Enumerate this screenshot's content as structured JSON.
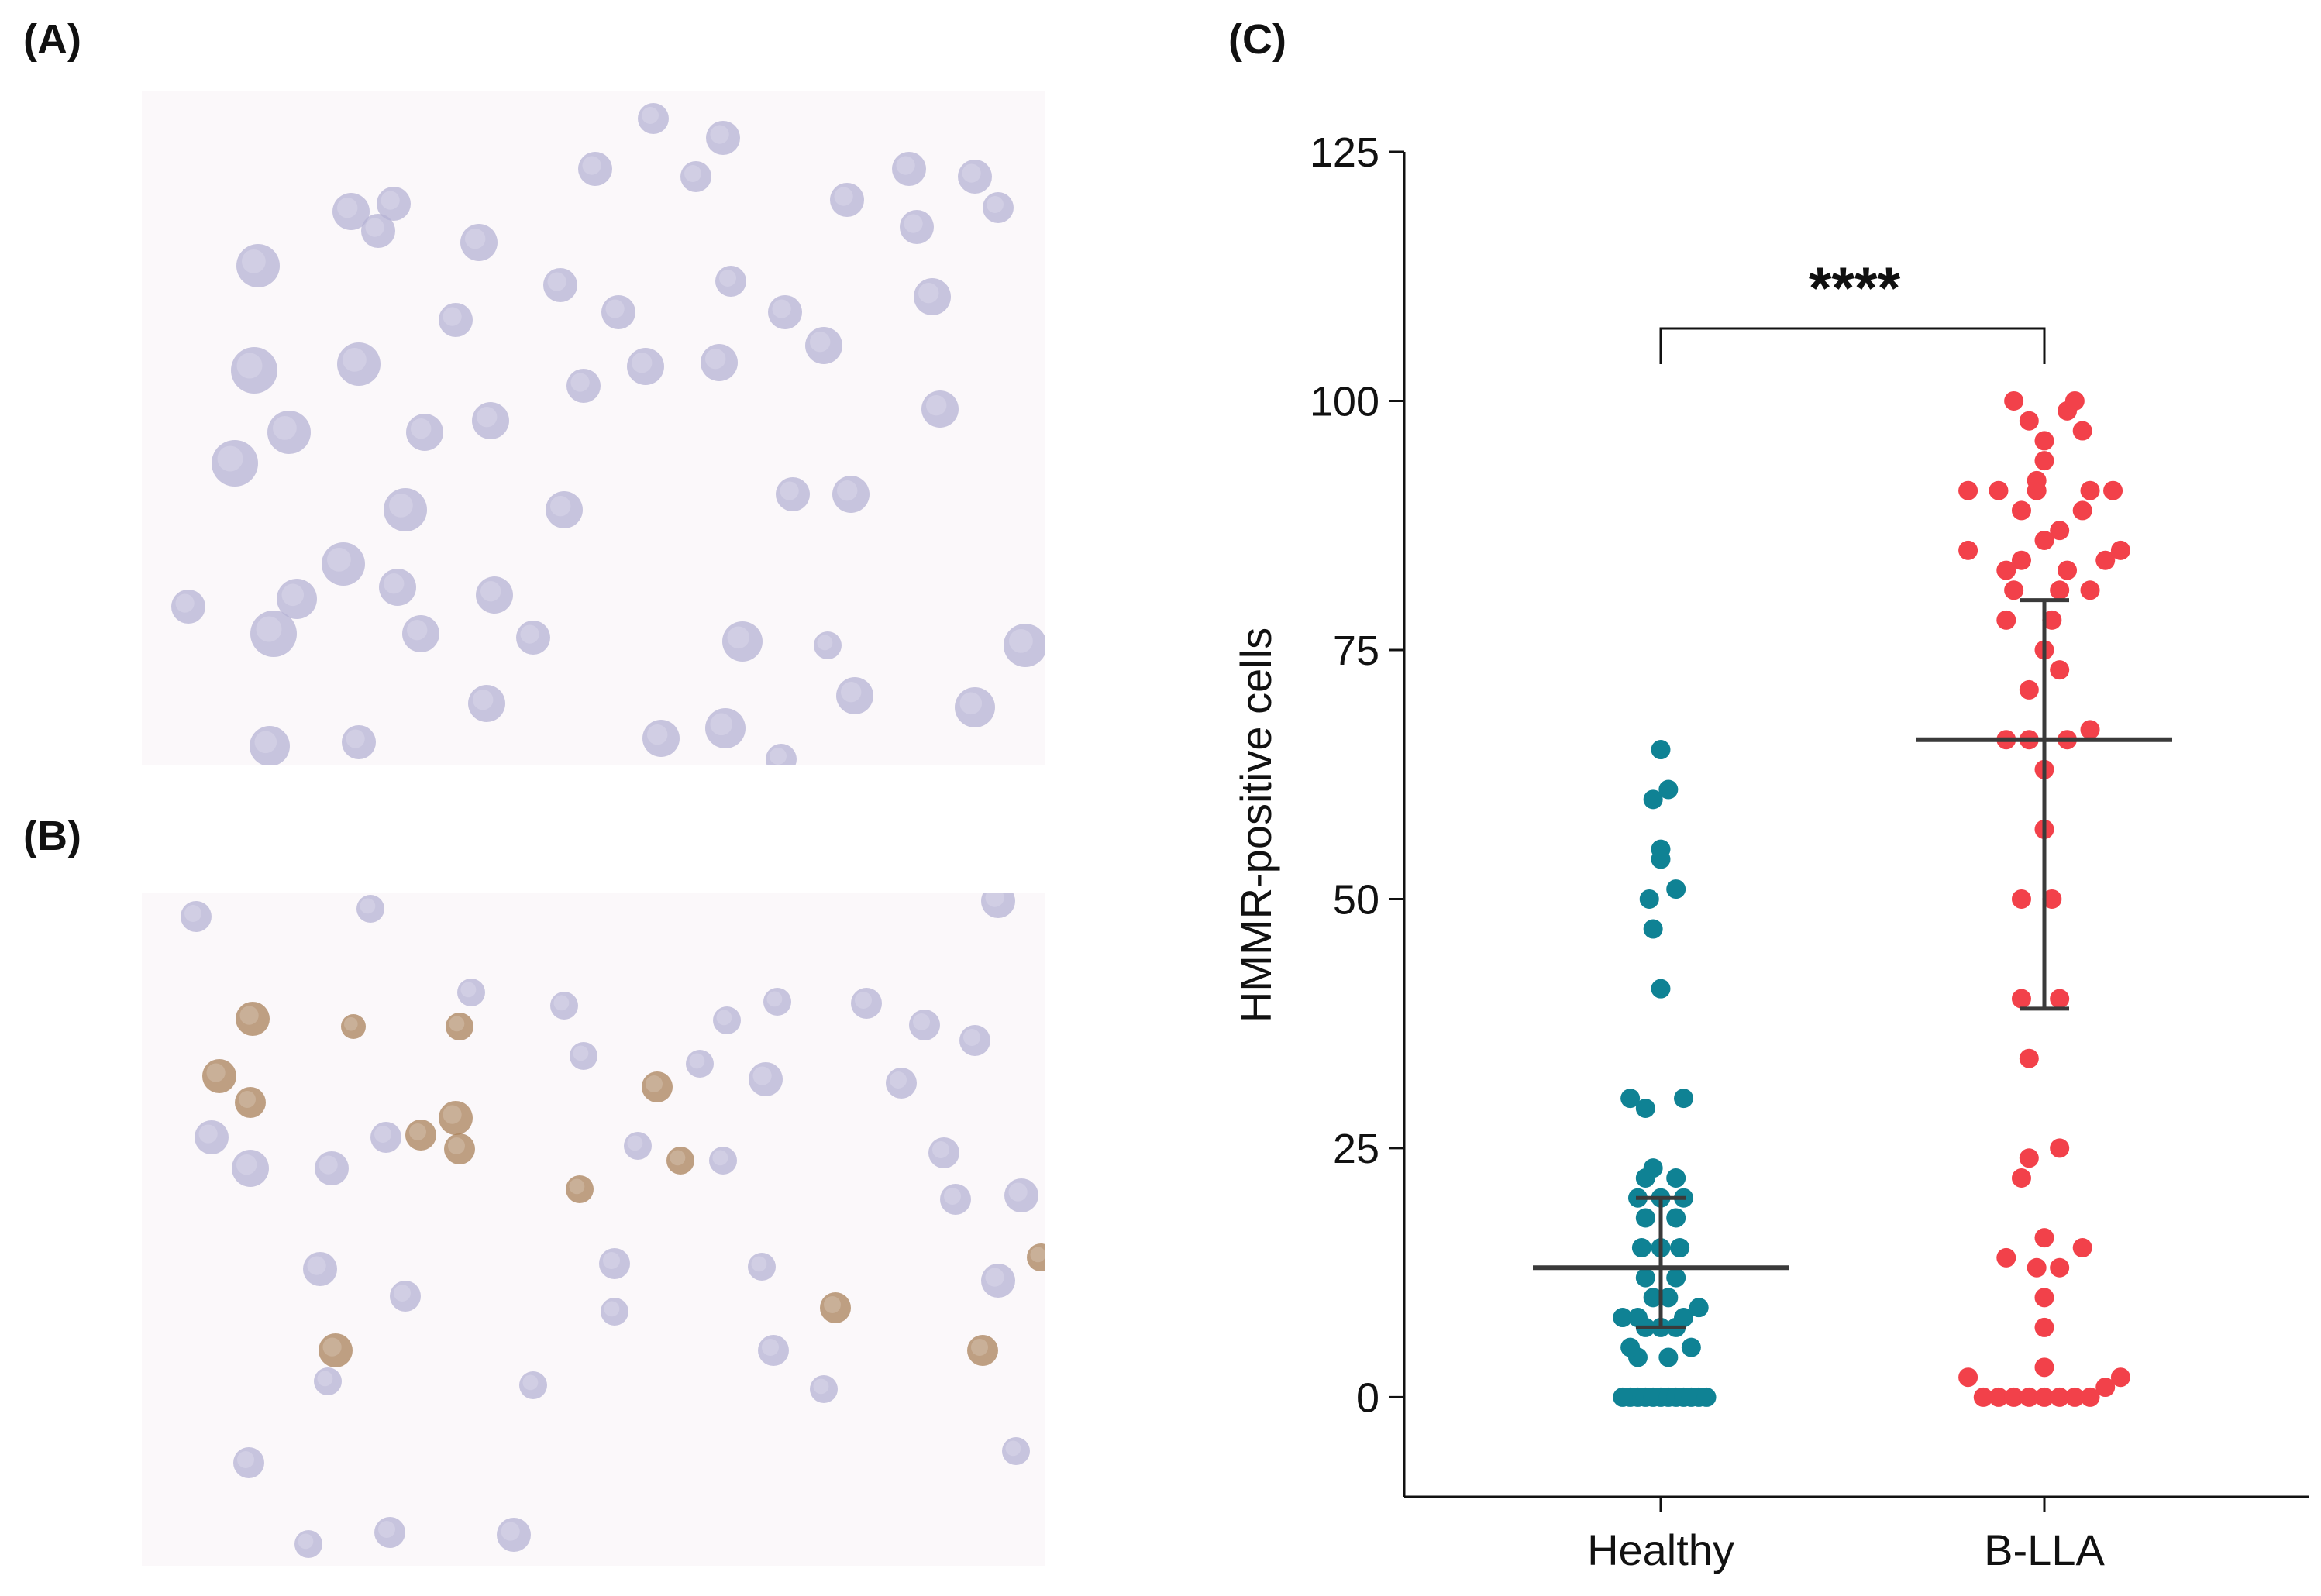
{
  "panels": {
    "a": "(A)",
    "b": "(B)",
    "c": "(C)"
  },
  "micrographs": {
    "a": {
      "stain": "hematoxylin-only",
      "cell_color": "#b9b6d6",
      "background": "#fbf8fa"
    },
    "b": {
      "stain": "HMMR immunostain",
      "cell_color": "#b89064",
      "background": "#fbf8fa"
    }
  },
  "chart_data": {
    "type": "scatter",
    "title": "",
    "xlabel": "",
    "ylabel": "HMMR-positive cells",
    "ylim": [
      -10,
      125
    ],
    "yticks": [
      0,
      25,
      50,
      75,
      100,
      125
    ],
    "categories": [
      "Healthy",
      "B-LLA"
    ],
    "significance": {
      "label": "****",
      "between": [
        "Healthy",
        "B-LLA"
      ]
    },
    "series": [
      {
        "name": "Healthy",
        "color": "#0f8294",
        "median": 13,
        "iqr": [
          7,
          20
        ],
        "points": [
          [
            0,
            0
          ],
          [
            -0.8,
            0
          ],
          [
            -0.6,
            0
          ],
          [
            -0.4,
            0
          ],
          [
            -0.2,
            0
          ],
          [
            0.2,
            0
          ],
          [
            0.4,
            0
          ],
          [
            0.6,
            0
          ],
          [
            0.8,
            0
          ],
          [
            1.0,
            0
          ],
          [
            1.2,
            0
          ],
          [
            -1.0,
            0
          ],
          [
            -0.6,
            4
          ],
          [
            0.2,
            4
          ],
          [
            -0.8,
            5
          ],
          [
            0.8,
            5
          ],
          [
            -0.4,
            7
          ],
          [
            0,
            7
          ],
          [
            0.4,
            7
          ],
          [
            -1.0,
            8
          ],
          [
            -0.6,
            8
          ],
          [
            0.6,
            8
          ],
          [
            1.0,
            9
          ],
          [
            -0.2,
            10
          ],
          [
            0.2,
            10
          ],
          [
            -0.4,
            12
          ],
          [
            0.4,
            12
          ],
          [
            -0.5,
            15
          ],
          [
            0,
            15
          ],
          [
            0.5,
            15
          ],
          [
            -0.4,
            18
          ],
          [
            0.4,
            18
          ],
          [
            -0.6,
            20
          ],
          [
            0,
            20
          ],
          [
            0.6,
            20
          ],
          [
            -0.4,
            22
          ],
          [
            0.4,
            22
          ],
          [
            -0.2,
            23
          ],
          [
            -0.4,
            29
          ],
          [
            0.6,
            30
          ],
          [
            -0.8,
            30
          ],
          [
            0,
            41
          ],
          [
            -0.2,
            47
          ],
          [
            -0.3,
            50
          ],
          [
            0.4,
            51
          ],
          [
            0,
            54
          ],
          [
            0,
            55
          ],
          [
            -0.2,
            60
          ],
          [
            0.2,
            61
          ],
          [
            0,
            65
          ]
        ]
      },
      {
        "name": "B-LLA",
        "color": "#f2414a",
        "median": 66,
        "iqr": [
          39,
          80
        ],
        "points": [
          [
            -2.0,
            2
          ],
          [
            1.6,
            1
          ],
          [
            2.0,
            2
          ],
          [
            -1.6,
            0
          ],
          [
            -1.2,
            0
          ],
          [
            -0.8,
            0
          ],
          [
            -0.4,
            0
          ],
          [
            0,
            0
          ],
          [
            0.4,
            0
          ],
          [
            0.8,
            0
          ],
          [
            1.2,
            0
          ],
          [
            0,
            3
          ],
          [
            0,
            7
          ],
          [
            0,
            10
          ],
          [
            -0.2,
            13
          ],
          [
            0.4,
            13
          ],
          [
            -1.0,
            14
          ],
          [
            1.0,
            15
          ],
          [
            0,
            16
          ],
          [
            -0.6,
            22
          ],
          [
            -0.4,
            24
          ],
          [
            0.4,
            25
          ],
          [
            -0.4,
            34
          ],
          [
            -0.6,
            40
          ],
          [
            0.4,
            40
          ],
          [
            -0.6,
            50
          ],
          [
            0.2,
            50
          ],
          [
            0,
            57
          ],
          [
            0,
            63
          ],
          [
            -1.0,
            66
          ],
          [
            -0.4,
            66
          ],
          [
            0.6,
            66
          ],
          [
            1.2,
            67
          ],
          [
            -0.4,
            71
          ],
          [
            0.4,
            73
          ],
          [
            0,
            75
          ],
          [
            -1.0,
            78
          ],
          [
            0.2,
            78
          ],
          [
            -0.8,
            81
          ],
          [
            0.4,
            81
          ],
          [
            1.2,
            81
          ],
          [
            -1.0,
            83
          ],
          [
            0.6,
            83
          ],
          [
            -0.6,
            84
          ],
          [
            1.6,
            84
          ],
          [
            -2.0,
            85
          ],
          [
            2.0,
            85
          ],
          [
            0,
            86
          ],
          [
            0.4,
            87
          ],
          [
            -0.6,
            89
          ],
          [
            1.0,
            89
          ],
          [
            -2.0,
            91
          ],
          [
            -1.2,
            91
          ],
          [
            -0.2,
            91
          ],
          [
            1.2,
            91
          ],
          [
            1.8,
            91
          ],
          [
            -0.2,
            92
          ],
          [
            0,
            94
          ],
          [
            0,
            96
          ],
          [
            -0.4,
            98
          ],
          [
            1.0,
            97
          ],
          [
            0.6,
            99
          ],
          [
            -0.8,
            100
          ],
          [
            0.8,
            100
          ]
        ]
      }
    ]
  }
}
